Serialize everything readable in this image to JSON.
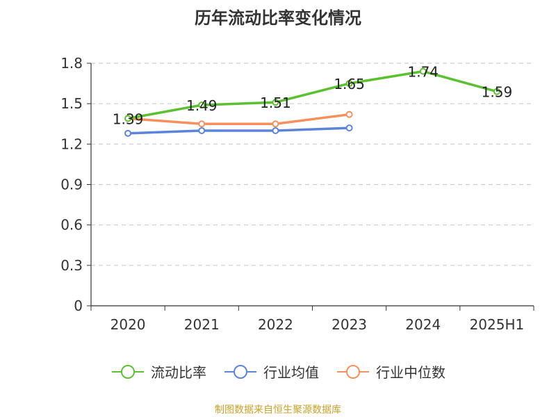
{
  "chart_data": {
    "type": "line",
    "title": "历年流动比率变化情况",
    "categories": [
      "2020",
      "2021",
      "2022",
      "2023",
      "2024",
      "2025H1"
    ],
    "y_ticks": [
      "0",
      "0.3",
      "0.6",
      "0.9",
      "1.2",
      "1.5",
      "1.8"
    ],
    "ylim": [
      0,
      1.8
    ],
    "grid": true,
    "legend_position": "bottom",
    "series": [
      {
        "name": "流动比率",
        "color": "#5cc130",
        "values": [
          1.39,
          1.49,
          1.51,
          1.65,
          1.74,
          1.59
        ],
        "labels": [
          "1.39",
          "1.49",
          "1.51",
          "1.65",
          "1.74",
          "1.59"
        ]
      },
      {
        "name": "行业均值",
        "color": "#5b84dc",
        "values": [
          1.28,
          1.3,
          1.3,
          1.32,
          null,
          null
        ]
      },
      {
        "name": "行业中位数",
        "color": "#f7905c",
        "values": [
          1.39,
          1.35,
          1.35,
          1.42,
          null,
          null
        ]
      }
    ]
  },
  "source": "制图数据来自恒生聚源数据库"
}
